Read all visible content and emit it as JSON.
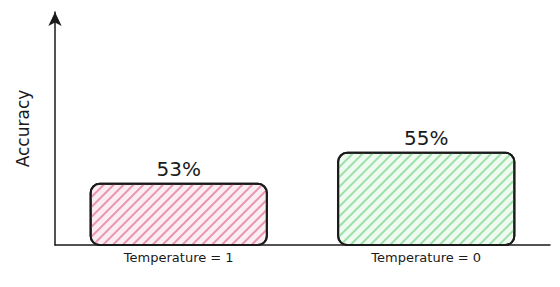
{
  "chart_data": {
    "type": "bar",
    "y_label": "Accuracy",
    "categories": [
      "Temperature = 1",
      "Temperature = 0"
    ],
    "values": [
      53,
      55
    ],
    "value_labels": [
      "53%",
      "55%"
    ],
    "colors": [
      "#e2779c",
      "#7fd68f"
    ],
    "ylim": [
      49,
      64
    ],
    "tick_labels": "x",
    "grid": false,
    "data_labels": true
  }
}
